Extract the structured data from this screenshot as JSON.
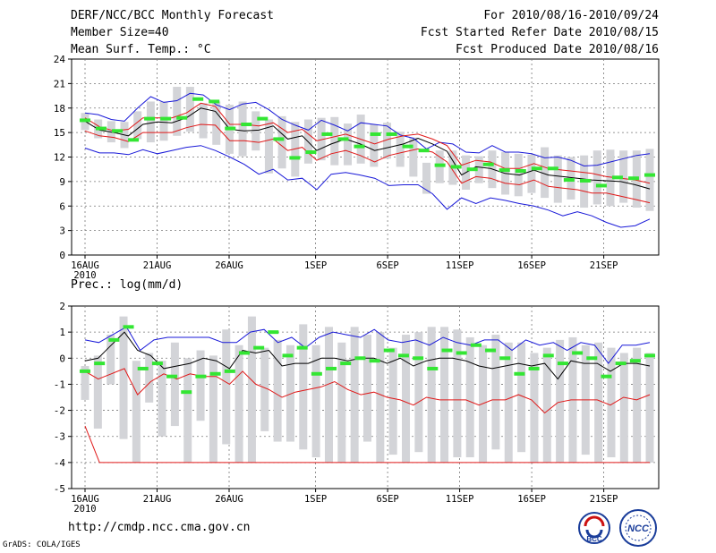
{
  "header": {
    "title": "DERF/NCC/BCC Monthly Forecast",
    "member_size": "Member Size=40",
    "variable_top": "Mean Surf. Temp.: °C",
    "period": "For 2010/08/16-2010/09/24",
    "started": "Fcst Started Refer Date 2010/08/15",
    "produced": "Fcst Produced Date 2010/08/16"
  },
  "footer": {
    "url": "http://cmdp.ncc.cma.gov.cn",
    "grads": "GrADS: COLA/IGES",
    "logo_bcc": "BCC",
    "logo_ncc": "NCC"
  },
  "colors": {
    "box": "#d3d4d8",
    "mean": "#000000",
    "green": "#33e633",
    "red": "#e01818",
    "blue": "#1818d8"
  },
  "chart_data": [
    {
      "type": "line",
      "title": "Mean Surf. Temp.: °C",
      "xlabel": "",
      "ylabel": "°C",
      "ylim": [
        0,
        24
      ],
      "yticks": [
        0,
        3,
        6,
        9,
        12,
        15,
        18,
        21,
        24
      ],
      "x_day_range": [
        1,
        40
      ],
      "x_tick_labels": [
        {
          "day": 1,
          "label": "16AUG",
          "sub": "2010"
        },
        {
          "day": 6,
          "label": "21AUG"
        },
        {
          "day": 11,
          "label": "26AUG"
        },
        {
          "day": 17,
          "label": "1SEP"
        },
        {
          "day": 22,
          "label": "6SEP"
        },
        {
          "day": 27,
          "label": "11SEP"
        },
        {
          "day": 32,
          "label": "16SEP"
        },
        {
          "day": 37,
          "label": "21SEP"
        }
      ],
      "series": [
        {
          "name": "ensemble mean",
          "color": "black",
          "values": [
            16.4,
            15.3,
            15.0,
            14.6,
            16.0,
            16.3,
            16.2,
            16.8,
            18.0,
            17.6,
            15.4,
            15.2,
            15.3,
            15.8,
            14.2,
            14.6,
            12.8,
            13.6,
            14.2,
            13.6,
            12.8,
            13.2,
            13.6,
            14.3,
            13.6,
            12.7,
            9.8,
            10.8,
            10.6,
            10.0,
            9.8,
            10.4,
            9.8,
            9.6,
            9.4,
            9.2,
            9.1,
            9.0,
            8.6,
            8.1
          ]
        },
        {
          "name": "max",
          "color": "blue",
          "values": [
            17.4,
            17.2,
            16.6,
            16.4,
            18.0,
            19.4,
            18.7,
            18.9,
            19.8,
            19.6,
            18.4,
            17.8,
            18.5,
            18.7,
            17.8,
            16.6,
            15.9,
            15.3,
            16.5,
            15.9,
            15.2,
            16.2,
            16.0,
            15.8,
            14.7,
            14.3,
            13.0,
            13.8,
            13.6,
            12.6,
            12.5,
            13.4,
            12.6,
            12.6,
            12.4,
            11.9,
            12.0,
            11.6,
            10.9,
            11.0,
            11.4,
            11.8,
            12.2,
            12.4
          ]
        },
        {
          "name": "min",
          "color": "blue",
          "values": [
            13.1,
            12.5,
            12.5,
            12.3,
            12.9,
            12.4,
            12.8,
            13.2,
            13.4,
            12.8,
            12.0,
            11.1,
            9.9,
            10.5,
            9.2,
            9.4,
            8.0,
            9.9,
            10.1,
            9.8,
            9.4,
            8.5,
            8.6,
            8.6,
            7.5,
            5.6,
            7.0,
            6.3,
            7.0,
            6.7,
            6.3,
            6.0,
            5.5,
            4.8,
            5.3,
            4.8,
            4.0,
            3.4,
            3.6,
            4.4
          ]
        },
        {
          "name": "upper band",
          "color": "red",
          "values": [
            16.8,
            15.7,
            15.2,
            15.4,
            16.8,
            16.8,
            16.8,
            17.4,
            18.6,
            18.2,
            16.0,
            16.0,
            15.8,
            16.2,
            15.0,
            15.4,
            14.0,
            14.4,
            14.8,
            14.2,
            13.6,
            14.2,
            14.6,
            14.8,
            14.2,
            13.4,
            11.0,
            11.6,
            11.4,
            10.6,
            10.6,
            11.2,
            10.6,
            10.4,
            10.2,
            10.0,
            9.6,
            9.4,
            9.2,
            8.8
          ]
        },
        {
          "name": "lower band",
          "color": "red",
          "values": [
            15.2,
            14.6,
            14.4,
            13.9,
            15.0,
            15.0,
            15.0,
            15.6,
            16.0,
            15.9,
            14.0,
            14.0,
            13.8,
            14.2,
            12.8,
            13.2,
            11.6,
            12.4,
            12.8,
            12.2,
            11.4,
            12.2,
            12.6,
            13.0,
            12.6,
            11.4,
            8.8,
            9.6,
            9.4,
            8.8,
            8.6,
            9.2,
            8.4,
            8.2,
            8.0,
            7.6,
            7.6,
            7.2,
            6.8,
            6.4
          ]
        },
        {
          "name": "observed",
          "color": "green",
          "values": [
            16.5,
            15.5,
            15.2,
            14.1,
            16.7,
            16.7,
            16.8,
            19.1,
            18.8,
            15.5,
            16.0,
            16.7,
            14.2,
            11.9,
            12.6,
            14.8,
            14.2,
            13.3,
            14.8,
            14.8,
            13.3,
            12.8,
            11.0,
            10.8,
            10.5,
            11.1,
            10.4,
            10.3,
            10.6,
            10.6,
            9.2,
            9.1,
            8.5,
            9.5,
            9.4,
            9.8
          ]
        },
        {
          "name": "spread box",
          "color": "gray",
          "low": [
            15.3,
            14.3,
            13.8,
            13.1,
            14.2,
            13.8,
            14.0,
            14.6,
            15.1,
            14.3,
            13.5,
            12.4,
            12.1,
            12.8,
            10.0,
            10.6,
            9.6,
            11.2,
            11.6,
            11.0,
            11.0,
            11.2,
            10.8,
            11.8,
            10.8,
            9.6,
            7.5,
            8.8,
            8.6,
            8.0,
            8.8,
            8.2,
            7.4,
            7.2,
            7.6,
            7.0,
            6.4,
            6.8,
            5.8,
            6.2,
            6.0,
            6.4,
            5.8,
            5.4
          ],
          "high": [
            17.4,
            16.6,
            16.4,
            16.3,
            17.6,
            18.8,
            18.8,
            20.6,
            20.6,
            18.6,
            18.8,
            18.4,
            18.8,
            17.6,
            16.6,
            17.0,
            16.3,
            16.6,
            16.8,
            16.9,
            16.1,
            17.2,
            16.0,
            16.2,
            15.1,
            14.4,
            11.3,
            12.8,
            12.8,
            12.2,
            12.1,
            12.8,
            12.6,
            12.4,
            12.3,
            13.2,
            12.2,
            12.0,
            12.2,
            12.8,
            12.9,
            12.8,
            12.8,
            13.0
          ]
        }
      ]
    },
    {
      "type": "line",
      "title": "Prec.: log(mm/d)",
      "xlabel": "",
      "ylabel": "log(mm/d)",
      "ylim": [
        -5,
        2
      ],
      "yticks": [
        -5,
        -4,
        -3,
        -2,
        -1,
        0,
        1,
        2
      ],
      "x_day_range": [
        1,
        40
      ],
      "x_tick_labels": [
        {
          "day": 1,
          "label": "16AUG",
          "sub": "2010"
        },
        {
          "day": 6,
          "label": "21AUG"
        },
        {
          "day": 11,
          "label": "26AUG"
        },
        {
          "day": 17,
          "label": "1SEP"
        },
        {
          "day": 22,
          "label": "6SEP"
        },
        {
          "day": 27,
          "label": "11SEP"
        },
        {
          "day": 32,
          "label": "16SEP"
        },
        {
          "day": 37,
          "label": "21SEP"
        }
      ],
      "series": [
        {
          "name": "ensemble mean",
          "color": "black",
          "values": [
            -0.1,
            0.0,
            0.5,
            1.0,
            0.3,
            0.1,
            -0.4,
            -0.3,
            -0.2,
            0.0,
            -0.1,
            -0.4,
            0.3,
            0.2,
            0.3,
            -0.3,
            -0.2,
            -0.2,
            0.0,
            0.0,
            -0.1,
            0.0,
            0.0,
            -0.2,
            0.0,
            -0.3,
            -0.1,
            0.0,
            0.0,
            -0.1,
            -0.3,
            -0.4,
            -0.3,
            -0.2,
            -0.3,
            -0.2,
            -0.8,
            -0.1,
            -0.2,
            -0.2,
            -0.5,
            -0.2,
            -0.2,
            -0.3
          ]
        },
        {
          "name": "max",
          "color": "blue",
          "values": [
            0.7,
            0.6,
            0.9,
            1.2,
            0.3,
            0.7,
            0.8,
            0.8,
            0.8,
            0.8,
            0.6,
            0.6,
            1.0,
            1.1,
            0.6,
            0.8,
            0.4,
            0.8,
            1.0,
            0.9,
            0.8,
            1.1,
            0.7,
            0.6,
            0.7,
            0.5,
            0.8,
            0.6,
            0.5,
            0.7,
            0.7,
            0.3,
            0.7,
            0.5,
            0.6,
            0.3,
            0.6,
            0.5,
            -0.2,
            0.5,
            0.5,
            0.6
          ]
        },
        {
          "name": "min",
          "color": "red",
          "values": [
            -0.5,
            -0.8,
            -0.6,
            -0.4,
            -1.4,
            -0.9,
            -0.6,
            -0.8,
            -0.6,
            -0.7,
            -0.7,
            -1.0,
            -0.5,
            -1.0,
            -1.2,
            -1.5,
            -1.3,
            -1.2,
            -1.1,
            -0.9,
            -1.2,
            -1.4,
            -1.3,
            -1.5,
            -1.6,
            -1.8,
            -1.5,
            -1.6,
            -1.6,
            -1.6,
            -1.8,
            -1.6,
            -1.6,
            -1.4,
            -1.6,
            -2.1,
            -1.7,
            -1.6,
            -1.6,
            -1.6,
            -1.8,
            -1.5,
            -1.6,
            -1.4
          ]
        },
        {
          "name": "lower bound",
          "color": "red",
          "values": [
            -2.6,
            -4,
            -4,
            -4,
            -4,
            -4,
            -4,
            -4,
            -4,
            -4,
            -4,
            -4,
            -4,
            -4,
            -4,
            -4,
            -4,
            -4,
            -4,
            -4,
            -4,
            -4,
            -4,
            -4,
            -4,
            -4,
            -4,
            -4,
            -4,
            -4,
            -4,
            -4,
            -4,
            -4,
            -4,
            -4,
            -4,
            -4,
            -4,
            -4
          ]
        },
        {
          "name": "observed",
          "color": "green",
          "values": [
            -0.5,
            -0.2,
            0.7,
            1.2,
            -0.4,
            -0.2,
            -0.7,
            -1.3,
            -0.7,
            -0.6,
            -0.5,
            0.2,
            0.4,
            1.0,
            0.1,
            0.4,
            -0.6,
            -0.4,
            -0.2,
            0.0,
            -0.1,
            0.3,
            0.1,
            0.0,
            -0.4,
            0.3,
            0.2,
            0.5,
            0.3,
            0.0,
            -0.6,
            -0.4,
            0.1,
            -0.2,
            0.2,
            0.0,
            -0.7,
            -0.2,
            -0.1,
            0.1
          ]
        },
        {
          "name": "spread box",
          "color": "gray",
          "low": [
            -1.6,
            -2.7,
            -1.0,
            -3.1,
            -4.0,
            -1.7,
            -3.0,
            -2.6,
            -4.0,
            -2.4,
            -4.0,
            -3.3,
            -4.0,
            -4.0,
            -2.8,
            -3.2,
            -3.2,
            -3.5,
            -3.8,
            -4.0,
            -4.0,
            -4.0,
            -3.2,
            -4.0,
            -3.7,
            -4.0,
            -3.6,
            -4.0,
            -4.0,
            -3.8,
            -3.8,
            -4.0,
            -3.5,
            -4.0,
            -3.6,
            -4.0,
            -4.0,
            -4.0,
            -4.0,
            -3.7,
            -4.0,
            -3.8,
            -4.0,
            -4.0,
            -4.0
          ],
          "high": [
            -0.3,
            0.1,
            0.9,
            1.6,
            -0.1,
            0.2,
            -0.1,
            0.6,
            0.0,
            0.3,
            0.1,
            1.1,
            0.5,
            1.6,
            0.4,
            0.7,
            0.5,
            1.3,
            0.5,
            1.2,
            0.6,
            1.2,
            0.9,
            1.0,
            0.4,
            0.9,
            1.0,
            1.2,
            1.2,
            1.1,
            0.8,
            0.5,
            0.9,
            0.6,
            0.6,
            0.2,
            0.4,
            0.7,
            0.8,
            0.5,
            0.6,
            0.4,
            0.2,
            0.4,
            0.2
          ]
        }
      ]
    }
  ]
}
